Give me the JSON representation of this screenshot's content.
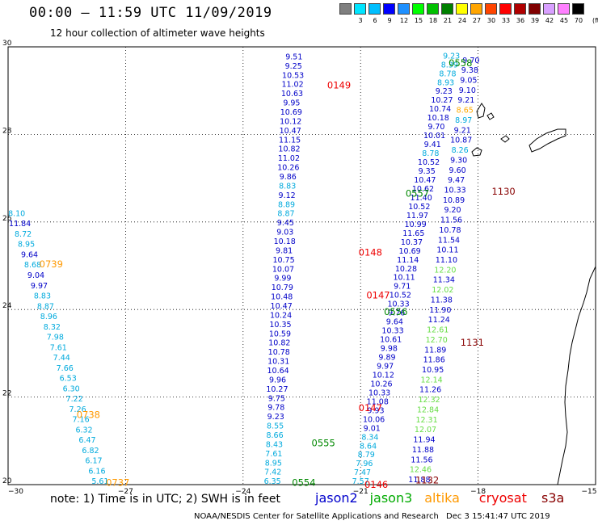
{
  "header": {
    "title": "00:00 – 11:59 UTC 11/09/2019",
    "subtitle": "12 hour collection of altimeter wave heights"
  },
  "colorbar": {
    "labels": [
      "3",
      "6",
      "9",
      "12",
      "15",
      "18",
      "21",
      "24",
      "27",
      "30",
      "33",
      "36",
      "39",
      "42",
      "45",
      "70"
    ],
    "unit": "(ft)",
    "colors": [
      "#7f7f7f",
      "#00e5ff",
      "#00bfff",
      "#0000ff",
      "#1e90ff",
      "#00ff00",
      "#00c000",
      "#008000",
      "#ffff00",
      "#ffa500",
      "#ff4500",
      "#ff0000",
      "#b00000",
      "#800000",
      "#d8a0ff",
      "#ff80ff",
      "#000000"
    ]
  },
  "axes": {
    "x_ticks": [
      "−30",
      "−27",
      "−24",
      "−21",
      "−18",
      "−15"
    ],
    "y_ticks": [
      "30",
      "28",
      "26",
      "24",
      "22",
      "20"
    ]
  },
  "chart_data": {
    "type": "scatter",
    "x_range": [
      -30,
      -15
    ],
    "y_range": [
      20,
      30
    ],
    "value_colors": {
      "c": "#00aadd",
      "b": "#0000c8",
      "lg": "#66dd44"
    },
    "tracks": [
      {
        "lon_start": -29.78,
        "lat_start": 26.2,
        "lon_end": -27.65,
        "lat_end": 20.08,
        "values": [
          [
            "8.10",
            "c"
          ],
          [
            "11.84",
            "b"
          ],
          [
            "8.72",
            "c"
          ],
          [
            "8.95",
            "c"
          ],
          [
            "9.64",
            "b"
          ],
          [
            "8.68",
            "c"
          ],
          [
            "9.04",
            "b"
          ],
          [
            "9.97",
            "b"
          ],
          [
            "8.83",
            "c"
          ],
          [
            "8.87",
            "c"
          ],
          [
            "8.96",
            "c"
          ],
          [
            "8.32",
            "c"
          ],
          [
            "7.98",
            "c"
          ],
          [
            "7.61",
            "c"
          ],
          [
            "7.44",
            "c"
          ],
          [
            "7.66",
            "c"
          ],
          [
            "6.53",
            "c"
          ],
          [
            "6.30",
            "c"
          ],
          [
            "7.22",
            "c"
          ],
          [
            "7.26",
            "c"
          ],
          [
            "7.16",
            "c"
          ],
          [
            "6.32",
            "c"
          ],
          [
            "6.47",
            "c"
          ],
          [
            "6.82",
            "c"
          ],
          [
            "6.17",
            "c"
          ],
          [
            "6.16",
            "c"
          ],
          [
            "5.61",
            "c"
          ]
        ]
      },
      {
        "lon_start": -22.7,
        "lat_start": 29.78,
        "lon_end": -23.25,
        "lat_end": 20.08,
        "values": [
          [
            "9.51",
            "b"
          ],
          [
            "9.25",
            "b"
          ],
          [
            "10.53",
            "b"
          ],
          [
            "11.02",
            "b"
          ],
          [
            "10.63",
            "b"
          ],
          [
            "9.95",
            "b"
          ],
          [
            "10.69",
            "b"
          ],
          [
            "10.12",
            "b"
          ],
          [
            "10.47",
            "b"
          ],
          [
            "11.15",
            "b"
          ],
          [
            "10.82",
            "b"
          ],
          [
            "11.02",
            "b"
          ],
          [
            "10.26",
            "b"
          ],
          [
            "9.86",
            "b"
          ],
          [
            "8.83",
            "c"
          ],
          [
            "9.12",
            "b"
          ],
          [
            "8.89",
            "c"
          ],
          [
            "8.87",
            "c"
          ],
          [
            "9.45",
            "b"
          ],
          [
            "9.03",
            "b"
          ],
          [
            "10.18",
            "b"
          ],
          [
            "9.81",
            "b"
          ],
          [
            "10.75",
            "b"
          ],
          [
            "10.07",
            "b"
          ],
          [
            "9.99",
            "b"
          ],
          [
            "10.79",
            "b"
          ],
          [
            "10.48",
            "b"
          ],
          [
            "10.47",
            "b"
          ],
          [
            "10.24",
            "b"
          ],
          [
            "10.35",
            "b"
          ],
          [
            "10.59",
            "b"
          ],
          [
            "10.82",
            "b"
          ],
          [
            "10.78",
            "b"
          ],
          [
            "10.31",
            "b"
          ],
          [
            "10.64",
            "b"
          ],
          [
            "9.96",
            "b"
          ],
          [
            "10.27",
            "b"
          ],
          [
            "9.75",
            "b"
          ],
          [
            "9.78",
            "b"
          ],
          [
            "9.23",
            "b"
          ],
          [
            "8.55",
            "c"
          ],
          [
            "8.66",
            "c"
          ],
          [
            "8.43",
            "c"
          ],
          [
            "7.61",
            "c"
          ],
          [
            "8.95",
            "c"
          ],
          [
            "7.42",
            "c"
          ],
          [
            "6.35",
            "c"
          ]
        ]
      },
      {
        "lon_start": -21.0,
        "lat_start": 20.08,
        "lon_end": -18.68,
        "lat_end": 29.8,
        "values": [
          [
            "7.57",
            "c"
          ],
          [
            "7.47",
            "c"
          ],
          [
            "7.96",
            "c"
          ],
          [
            "8.79",
            "c"
          ],
          [
            "8.64",
            "c"
          ],
          [
            "8.34",
            "c"
          ],
          [
            "9.01",
            "b"
          ],
          [
            "10.06",
            "b"
          ],
          [
            "9.93",
            "b"
          ],
          [
            "11.08",
            "b"
          ],
          [
            "10.33",
            "b"
          ],
          [
            "10.26",
            "b"
          ],
          [
            "10.12",
            "b"
          ],
          [
            "9.97",
            "b"
          ],
          [
            "9.89",
            "b"
          ],
          [
            "9.98",
            "b"
          ],
          [
            "10.61",
            "b"
          ],
          [
            "10.33",
            "b"
          ],
          [
            "9.64",
            "b"
          ],
          [
            "9.76",
            "b"
          ],
          [
            "10.33",
            "b"
          ],
          [
            "10.52",
            "b"
          ],
          [
            "9.71",
            "b"
          ],
          [
            "10.11",
            "b"
          ],
          [
            "10.28",
            "b"
          ],
          [
            "11.14",
            "b"
          ],
          [
            "10.69",
            "b"
          ],
          [
            "10.37",
            "b"
          ],
          [
            "11.65",
            "b"
          ],
          [
            "10.99",
            "b"
          ],
          [
            "11.97",
            "b"
          ],
          [
            "10.52",
            "b"
          ],
          [
            "11.40",
            "b"
          ],
          [
            "10.62",
            "b"
          ],
          [
            "10.47",
            "b"
          ],
          [
            "9.35",
            "b"
          ],
          [
            "10.52",
            "b"
          ],
          [
            "8.78",
            "c"
          ],
          [
            "9.41",
            "b"
          ],
          [
            "10.01",
            "b"
          ],
          [
            "9.70",
            "b"
          ],
          [
            "10.18",
            "b"
          ],
          [
            "10.74",
            "b"
          ],
          [
            "10.27",
            "b"
          ],
          [
            "9.23",
            "b"
          ],
          [
            "8.93",
            "c"
          ],
          [
            "8.78",
            "c"
          ],
          [
            "8.39",
            "c"
          ],
          [
            "9.23",
            "c"
          ]
        ]
      },
      {
        "lon_start": -18.18,
        "lat_start": 29.7,
        "lon_end": -19.5,
        "lat_end": 20.12,
        "values": [
          [
            "9.70",
            "b"
          ],
          [
            "9.38",
            "b"
          ],
          [
            "9.05",
            "b"
          ],
          [
            "9.10",
            "b"
          ],
          [
            "9.21",
            "b"
          ],
          [
            "8.65",
            "y"
          ],
          [
            "8.97",
            "c"
          ],
          [
            "9.21",
            "b"
          ],
          [
            "10.87",
            "b"
          ],
          [
            "8.26",
            "c"
          ],
          [
            "9.30",
            "b"
          ],
          [
            "9.60",
            "b"
          ],
          [
            "9.47",
            "b"
          ],
          [
            "10.33",
            "b"
          ],
          [
            "10.89",
            "b"
          ],
          [
            "9.20",
            "b"
          ],
          [
            "11.56",
            "b"
          ],
          [
            "10.78",
            "b"
          ],
          [
            "11.54",
            "b"
          ],
          [
            "10.11",
            "b"
          ],
          [
            "11.10",
            "b"
          ],
          [
            "12.20",
            "lg"
          ],
          [
            "11.34",
            "b"
          ],
          [
            "12.02",
            "lg"
          ],
          [
            "11.38",
            "b"
          ],
          [
            "11.90",
            "b"
          ],
          [
            "11.24",
            "b"
          ],
          [
            "12.61",
            "lg"
          ],
          [
            "12.70",
            "lg"
          ],
          [
            "11.89",
            "b"
          ],
          [
            "11.86",
            "b"
          ],
          [
            "10.95",
            "b"
          ],
          [
            "12.14",
            "lg"
          ],
          [
            "11.26",
            "b"
          ],
          [
            "12.32",
            "lg"
          ],
          [
            "12.84",
            "lg"
          ],
          [
            "12.31",
            "lg"
          ],
          [
            "12.07",
            "lg"
          ],
          [
            "11.94",
            "b"
          ],
          [
            "11.88",
            "b"
          ],
          [
            "11.56",
            "b"
          ],
          [
            "12.46",
            "lg"
          ],
          [
            "11.88",
            "b"
          ]
        ]
      }
    ],
    "time_labels": [
      {
        "text": "0149",
        "lon": -21.55,
        "lat": 29.12,
        "color": "#ee0000"
      },
      {
        "text": "0558",
        "lon": -18.45,
        "lat": 29.63,
        "color": "#008800"
      },
      {
        "text": "1130",
        "lon": -17.35,
        "lat": 26.7,
        "color": "#880000"
      },
      {
        "text": "0557",
        "lon": -19.55,
        "lat": 26.65,
        "color": "#008800"
      },
      {
        "text": "0739",
        "lon": -28.9,
        "lat": 25.04,
        "color": "#ff9900"
      },
      {
        "text": "0148",
        "lon": -20.75,
        "lat": 25.3,
        "color": "#ee0000"
      },
      {
        "text": "0147",
        "lon": -20.55,
        "lat": 24.33,
        "color": "#ee0000"
      },
      {
        "text": "0556",
        "lon": -20.1,
        "lat": 23.95,
        "color": "#008800"
      },
      {
        "text": "1131",
        "lon": -18.15,
        "lat": 23.25,
        "color": "#880000"
      },
      {
        "text": "0738",
        "lon": -27.95,
        "lat": 21.6,
        "color": "#ff9900"
      },
      {
        "text": "0147",
        "lon": -20.75,
        "lat": 21.75,
        "color": "#ee0000"
      },
      {
        "text": "0555",
        "lon": -21.95,
        "lat": 20.95,
        "color": "#008800"
      },
      {
        "text": "0554",
        "lon": -22.45,
        "lat": 20.05,
        "color": "#008800"
      },
      {
        "text": "0737",
        "lon": -27.2,
        "lat": 20.05,
        "color": "#ff9900"
      },
      {
        "text": "0146",
        "lon": -20.6,
        "lat": 20.0,
        "color": "#ee0000"
      },
      {
        "text": "1132",
        "lon": -19.3,
        "lat": 20.1,
        "color": "#880000"
      }
    ]
  },
  "footer": {
    "note": "note:  1) Time is in UTC;  2) SWH is in feet",
    "legend": [
      {
        "label": "jason2",
        "color": "#0000cc"
      },
      {
        "label": "jason3",
        "color": "#00aa00"
      },
      {
        "label": "altika",
        "color": "#ff9900"
      },
      {
        "label": "cryosat",
        "color": "#ee0000"
      },
      {
        "label": "s3a",
        "color": "#880000"
      }
    ],
    "credit": "NOAA/NESDIS Center for Satellite Applications and Research",
    "timestamp": "Dec  3 15:41:47 UTC 2019"
  }
}
